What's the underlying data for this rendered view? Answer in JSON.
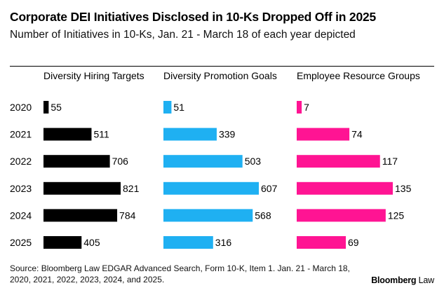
{
  "title": "Corporate DEI Initiatives Disclosed in 10-Ks Dropped Off in 2025",
  "subtitle": "Number of Initiatives in 10-Ks, Jan. 21 - March 18 of each year depicted",
  "source": "Source: Bloomberg Law EDGAR Advanced Search, Form 10-K, Item 1. Jan. 21 - March 18, 2020, 2021, 2022, 2023, 2024, and 2025.",
  "logo": {
    "bold": "Bloomberg",
    "thin": "Law"
  },
  "chart_data": {
    "type": "bar",
    "orientation": "horizontal",
    "title": "Corporate DEI Initiatives Disclosed in 10-Ks Dropped Off in 2025",
    "subtitle": "Number of Initiatives in 10-Ks, Jan. 21 - March 18 of each year depicted",
    "categories": [
      "2020",
      "2021",
      "2022",
      "2023",
      "2024",
      "2025"
    ],
    "series": [
      {
        "name": "Diversity Hiring Targets",
        "color": "#000000",
        "values": [
          55,
          511,
          706,
          821,
          784,
          405
        ]
      },
      {
        "name": "Diversity Promotion Goals",
        "color": "#1fb0f2",
        "values": [
          51,
          339,
          503,
          607,
          568,
          316
        ]
      },
      {
        "name": "Employee Resource Groups",
        "color": "#ff1493",
        "values": [
          7,
          74,
          117,
          135,
          125,
          69
        ]
      }
    ],
    "grid": false,
    "data_labels": true
  }
}
